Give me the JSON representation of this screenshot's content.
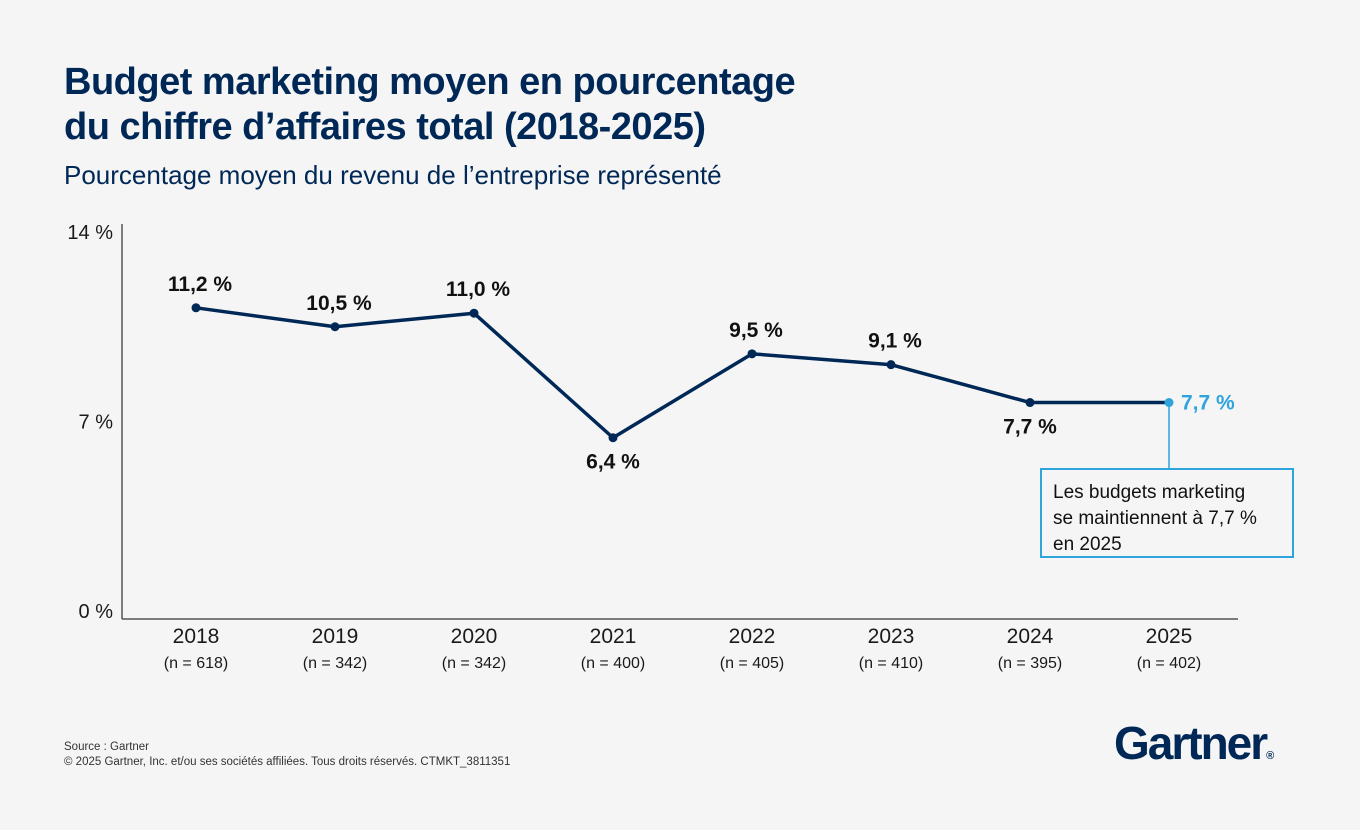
{
  "header": {
    "title_line1": "Budget marketing moyen en pourcentage",
    "title_line2": "du chiffre d’affaires total (2018-2025)",
    "subtitle": "Pourcentage moyen du revenu de l’entreprise représenté"
  },
  "chart_data": {
    "type": "line",
    "categories": [
      "2018",
      "2019",
      "2020",
      "2021",
      "2022",
      "2023",
      "2024",
      "2025"
    ],
    "sample_sizes": [
      "(n = 618)",
      "(n = 342)",
      "(n = 342)",
      "(n = 400)",
      "(n = 405)",
      "(n = 410)",
      "(n = 395)",
      "(n = 402)"
    ],
    "values": [
      11.2,
      10.5,
      11.0,
      6.4,
      9.5,
      9.1,
      7.7,
      7.7
    ],
    "value_labels": [
      "11,2 %",
      "10,5 %",
      "11,0 %",
      "6,4 %",
      "9,5 %",
      "9,1 %",
      "7,7 %",
      "7,7 %"
    ],
    "label_positions": [
      "above",
      "above",
      "above",
      "below",
      "above",
      "above",
      "below",
      "right"
    ],
    "highlight_index": 7,
    "ylim": [
      0,
      14
    ],
    "y_ticks": [
      0,
      7,
      14
    ],
    "y_tick_labels": [
      "0 %",
      "7 %",
      "14 %"
    ],
    "grid": false,
    "line_color": "#002856",
    "highlight_color": "#2ea3dc"
  },
  "callout": {
    "line1": "Les budgets marketing",
    "line2": "se maintiennent à 7,7 %",
    "line3": "en 2025"
  },
  "footer": {
    "source": "Source : Gartner",
    "copyright": "© 2025 Gartner, Inc. et/ou ses sociétés affiliées. Tous droits réservés. CTMKT_3811351"
  },
  "brand": {
    "logo_text": "Gartner",
    "registered": "®"
  }
}
